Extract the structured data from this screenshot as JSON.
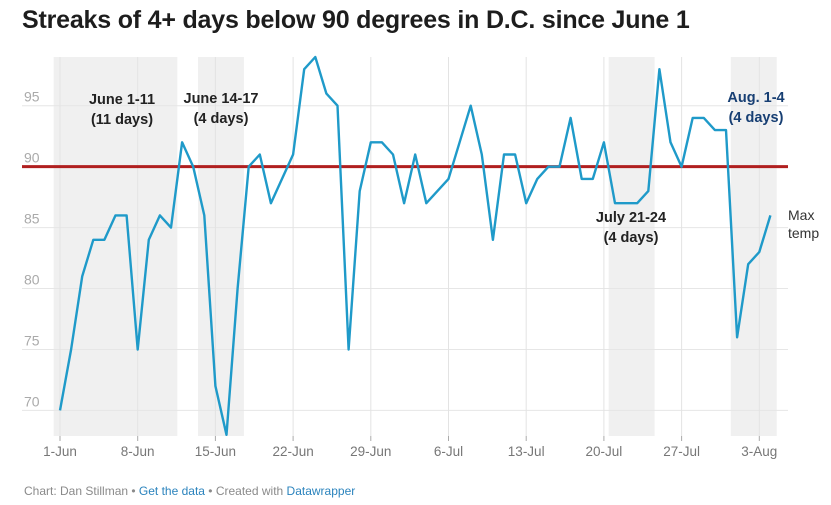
{
  "title": "Streaks of 4+ days below 90 degrees in D.C. since June 1",
  "footer": {
    "prefix": "Chart: Dan Stillman",
    "sep1": " • ",
    "data_link": "Get the data",
    "sep2": " • Created with ",
    "tool_link": "Datawrapper"
  },
  "colors": {
    "line": "#1f9ac9",
    "threshold": "#b01f1f",
    "shade": "#f0f0f0",
    "highlight_text": "#173f73",
    "text": "#222222"
  },
  "chart_data": {
    "type": "line",
    "title": "Streaks of 4+ days below 90 degrees in D.C. since June 1",
    "xlabel": "",
    "ylabel": "",
    "x_ticks": [
      "1-Jun",
      "8-Jun",
      "15-Jun",
      "22-Jun",
      "29-Jun",
      "6-Jul",
      "13-Jul",
      "20-Jul",
      "27-Jul",
      "3-Aug"
    ],
    "y_ticks": [
      70,
      75,
      80,
      85,
      90,
      95
    ],
    "ylim": [
      67.9,
      99
    ],
    "grid": true,
    "threshold": 90,
    "series": [
      {
        "name": "Max temp",
        "x_start": "1-Jun",
        "x_end": "4-Aug",
        "values": [
          70,
          75,
          81,
          84,
          84,
          86,
          86,
          75,
          84,
          86,
          85,
          92,
          90,
          86,
          72,
          68,
          80,
          90,
          91,
          87,
          89,
          91,
          98,
          99,
          96,
          95,
          75,
          88,
          92,
          92,
          91,
          87,
          91,
          87,
          88,
          89,
          92,
          95,
          91,
          84,
          91,
          91,
          87,
          89,
          90,
          90,
          94,
          89,
          89,
          92,
          87,
          87,
          87,
          88,
          98,
          92,
          90,
          94,
          94,
          93,
          93,
          76,
          82,
          83,
          86
        ]
      }
    ],
    "streaks": [
      {
        "label": "June 1-11",
        "sub": "(11 days)",
        "start": 0,
        "end": 10
      },
      {
        "label": "June 14-17",
        "sub": "(4 days)",
        "start": 13,
        "end": 16
      },
      {
        "label": "July 21-24",
        "sub": "(4 days)",
        "start": 50,
        "end": 53
      },
      {
        "label": "Aug. 1-4",
        "sub": "(4 days)",
        "start": 61,
        "end": 64
      }
    ]
  }
}
